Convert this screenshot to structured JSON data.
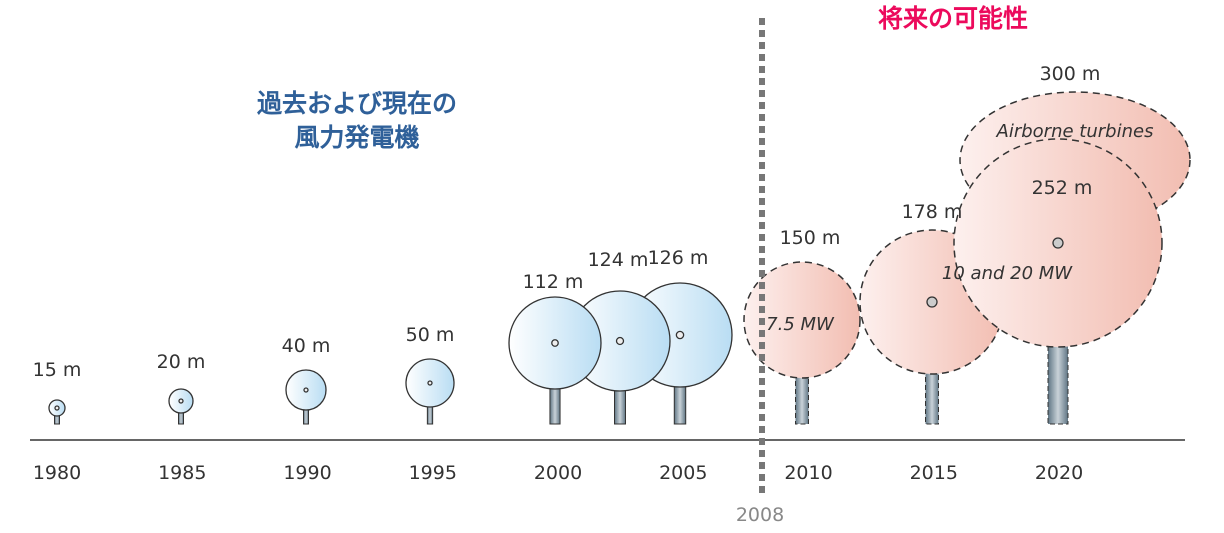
{
  "titles": {
    "past_line1": "過去および現在の",
    "past_line2": "風力発電機",
    "future": "将来の可能性"
  },
  "colors": {
    "past_title": "#2f6099",
    "future_title": "#ec0a5c",
    "past_fill": "#bfe0f4",
    "future_fill": "#f3c2b8"
  },
  "divider_label": "2008",
  "years": [
    "1980",
    "1985",
    "1990",
    "1995",
    "2000",
    "2005",
    "2010",
    "2015",
    "2020"
  ],
  "past_turbines": [
    {
      "year": 1980,
      "label": "15 m"
    },
    {
      "year": 1985,
      "label": "20 m"
    },
    {
      "year": 1990,
      "label": "40 m"
    },
    {
      "year": 1995,
      "label": "50 m"
    },
    {
      "year": 2000,
      "label": "112 m"
    },
    {
      "year": 2003,
      "label": "124 m"
    },
    {
      "year": 2005,
      "label": "126 m"
    }
  ],
  "future_turbines": [
    {
      "year": 2010,
      "label": "150 m",
      "power": "7.5 MW"
    },
    {
      "year": 2015,
      "label": "178 m"
    },
    {
      "year": 2020,
      "label": "252 m",
      "power": "10  and 20 MW"
    }
  ],
  "airborne": {
    "label": "300 m",
    "name": "Airborne turbines"
  }
}
